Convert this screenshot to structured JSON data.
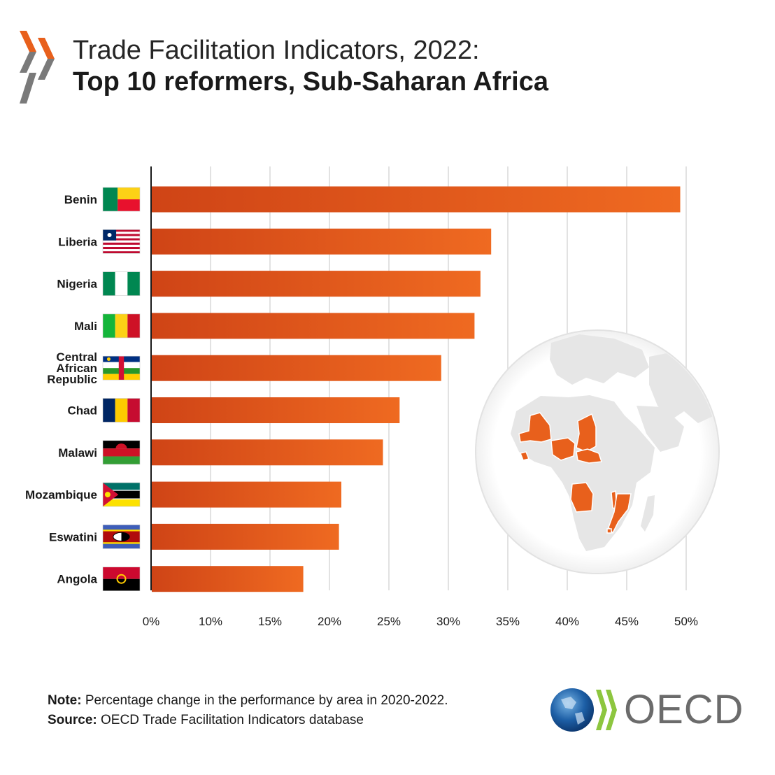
{
  "header": {
    "title_line1": "Trade Facilitation Indicators, 2022:",
    "title_line2": "Top 10 reformers, Sub-Saharan Africa"
  },
  "footer": {
    "note_label": "Note:",
    "note_text": "Percentage change in the performance by area in 2020-2022.",
    "source_label": "Source:",
    "source_text": "OECD Trade Facilitation Indicators database",
    "brand": "OECD"
  },
  "colors": {
    "bar_start": "#cf4416",
    "bar_end": "#ef6a21",
    "grid": "#d9d9d9",
    "axis": "#1a1a1a",
    "highlight": "#e8601c",
    "land": "#e6e6e6"
  },
  "chart_data": {
    "type": "bar",
    "orientation": "horizontal",
    "title": "",
    "xlabel": "",
    "ylabel": "",
    "categories": [
      [
        "Benin"
      ],
      [
        "Liberia"
      ],
      [
        "Nigeria"
      ],
      [
        "Mali"
      ],
      [
        "Central",
        "African",
        "Republic"
      ],
      [
        "Chad"
      ],
      [
        "Malawi"
      ],
      [
        "Mozambique"
      ],
      [
        "Eswatini"
      ],
      [
        "Angola"
      ]
    ],
    "flags": [
      "benin",
      "liberia",
      "nigeria",
      "mali",
      "central-african-republic",
      "chad",
      "malawi",
      "mozambique",
      "eswatini",
      "angola"
    ],
    "values": [
      44.5,
      28.6,
      27.7,
      27.2,
      24.4,
      20.9,
      19.5,
      16.0,
      15.8,
      12.8
    ],
    "xlim": [
      0,
      50
    ],
    "ticks": [
      "0%",
      "10%",
      "15%",
      "20%",
      "25%",
      "30%",
      "35%",
      "40%",
      "45%",
      "50%"
    ],
    "grid": true,
    "legend": "none"
  }
}
